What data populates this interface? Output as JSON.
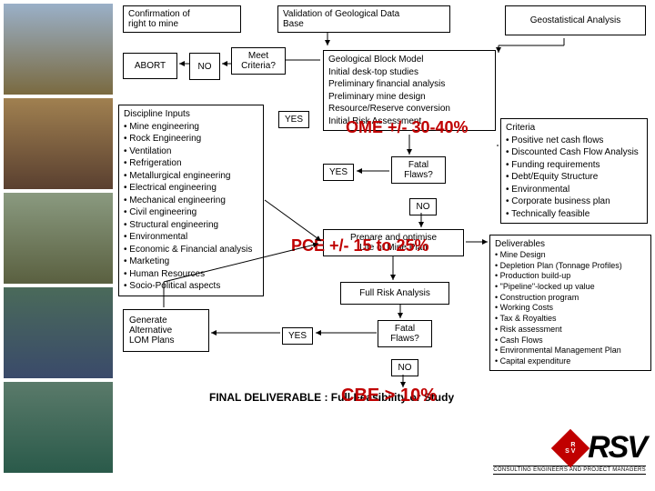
{
  "boxes": {
    "confirm": "Confirmation of\nright to mine",
    "validation": "Validation of Geological Data\nBase",
    "geostat": "Geostatistical Analysis",
    "abort": "ABORT",
    "no1": "NO",
    "meet": "Meet\nCriteria?",
    "block_model": "Geological Block Model\nInitial desk-top studies\nPreliminary financial analysis\nPreliminary mine design\nResource/Reserve conversion\nInitial Risk Assessment",
    "discipline_title": "Discipline Inputs",
    "discipline_items": [
      "Mine engineering",
      "Rock Engineering",
      "Ventilation",
      "Refrigeration",
      "Metallurgical engineering",
      "Electrical engineering",
      "Mechanical engineering",
      "Civil engineering",
      "Structural engineering",
      "Environmental",
      "Economic & Financial analysis",
      "Marketing",
      "Human Resources",
      "Socio-Political aspects"
    ],
    "ome": "OME +/- 30-40%",
    "criteria_title": "Criteria",
    "criteria_items": [
      "Positive net cash flows",
      "Discounted Cash Flow Analysis",
      "Funding requirements",
      "Debt/Equity Structure",
      "Environmental",
      "Corporate business plan",
      "Technically feasible"
    ],
    "yes1": "YES",
    "yes2": "YES",
    "fatal1": "Fatal\nFlaws?",
    "no2": "NO",
    "prepare": "Prepare and optimise\nLife of Mine Plan",
    "pce": "PCE +/- 15 to 25%",
    "deliv_title": "Deliverables",
    "deliv_items": [
      "Mine Design",
      "Depletion Plan (Tonnage Profiles)",
      "Production build-up",
      "\"Pipeline\"-locked up value",
      "Construction program",
      "Working Costs",
      "Tax & Royalties",
      "Risk assessment",
      "Cash Flows",
      "Environmental Management Plan",
      "Capital expenditure"
    ],
    "full_risk": "Full Risk Analysis",
    "generate": "Generate\nAlternative\nLOM Plans",
    "yes3": "YES",
    "fatal2": "Fatal\nFlaws?",
    "no3": "NO",
    "final": "FINAL  DELIVERABLE  :  Full Feasibility  or  Study",
    "cbe": "CBE > 10%",
    "logo_sub": "CONSULTING ENGINEERS AND PROJECT MANAGERS",
    "rsv": "RSV"
  },
  "colors": {
    "red": "#c00000",
    "line": "#000000"
  }
}
